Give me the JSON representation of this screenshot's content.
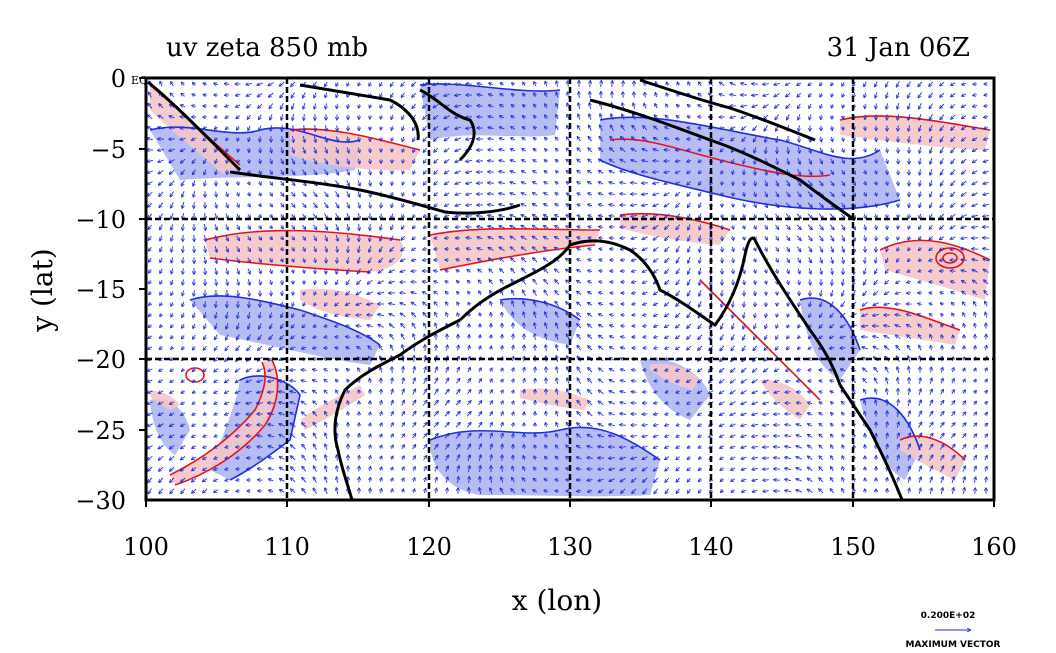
{
  "title_left": "uv zeta 850 mb",
  "title_right": "31 Jan 06Z",
  "xlabel": "x (lon)",
  "ylabel": "y (lat)",
  "x_ticks": [
    "100",
    "110",
    "120",
    "130",
    "140",
    "150",
    "160"
  ],
  "y_ticks": [
    "0",
    "−5",
    "−10",
    "−15",
    "−20",
    "−25",
    "−30"
  ],
  "eq_label": "EQ",
  "vector_scale_value": "0.200E+02",
  "vector_scale_label": "MAXIMUM VECTOR",
  "colors": {
    "positive_contour": "#e8121b",
    "positive_fill": "#f4c6c6",
    "negative_contour": "#2030e0",
    "negative_fill": "#aab2f0",
    "vector": "#1a2ce0",
    "coastline": "#000000",
    "grid": "#000000"
  },
  "chart_data": {
    "type": "map",
    "field": "relative vorticity (zeta) with wind vectors (u,v)",
    "level": "850 mb",
    "time": "31 Jan 06Z",
    "xlim": [
      100,
      160
    ],
    "ylim": [
      -30,
      0
    ],
    "x_tick_values": [
      100,
      110,
      120,
      130,
      140,
      150,
      160
    ],
    "y_tick_values": [
      0,
      -5,
      -10,
      -15,
      -20,
      -25,
      -30
    ],
    "grid_lon": [
      110,
      120,
      130,
      140,
      150
    ],
    "grid_lat": [
      -10,
      -20
    ],
    "grid": true,
    "legend": "vector scale at bottom-right"
  }
}
